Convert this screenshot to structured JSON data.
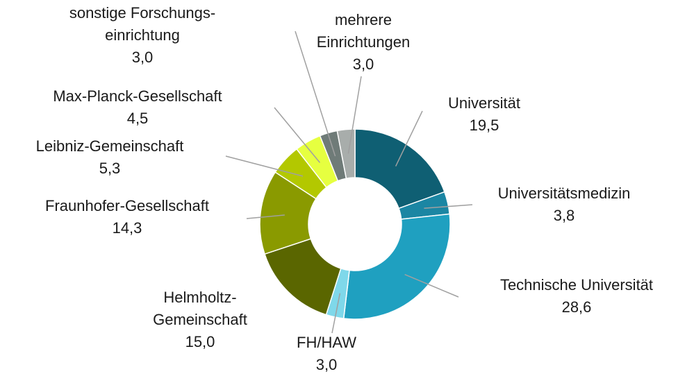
{
  "chart_data": {
    "type": "donut",
    "categories": [
      "Universität",
      "Universitätsmedizin",
      "Technische Universität",
      "FH/HAW",
      "Helmholtz-\nGemeinschaft",
      "Fraunhofer-Gesellschaft",
      "Leibniz-Gemeinschaft",
      "Max-Planck-Gesellschaft",
      "sonstige Forschungs-\neinrichtung",
      "mehrere\nEinrichtungen"
    ],
    "values": [
      19.5,
      3.8,
      28.6,
      3.0,
      15.0,
      14.3,
      5.3,
      4.5,
      3.0,
      3.0
    ],
    "value_labels": [
      "19,5",
      "3,8",
      "28,6",
      "3,0",
      "15,0",
      "14,3",
      "5,3",
      "4,5",
      "3,0",
      "3,0"
    ],
    "colors": [
      "#0f5f73",
      "#1b86a3",
      "#1fa0c0",
      "#7fd8ea",
      "#5a6600",
      "#8a9a00",
      "#b3c800",
      "#e6ff40",
      "#6f7b78",
      "#a8adab"
    ]
  }
}
